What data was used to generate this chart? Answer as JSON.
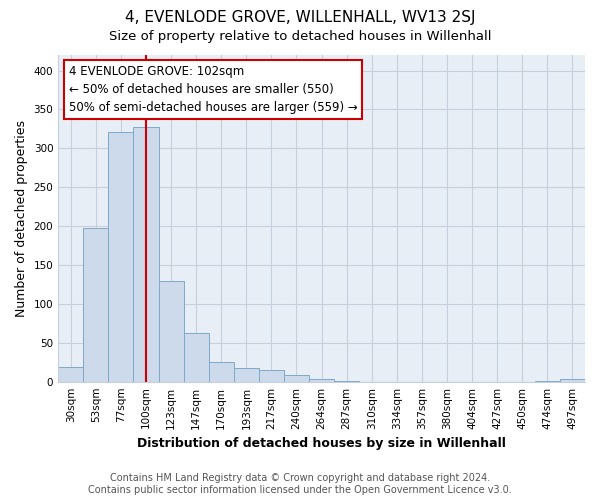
{
  "title": "4, EVENLODE GROVE, WILLENHALL, WV13 2SJ",
  "subtitle": "Size of property relative to detached houses in Willenhall",
  "xlabel": "Distribution of detached houses by size in Willenhall",
  "ylabel": "Number of detached properties",
  "bar_labels": [
    "30sqm",
    "53sqm",
    "77sqm",
    "100sqm",
    "123sqm",
    "147sqm",
    "170sqm",
    "193sqm",
    "217sqm",
    "240sqm",
    "264sqm",
    "287sqm",
    "310sqm",
    "334sqm",
    "357sqm",
    "380sqm",
    "404sqm",
    "427sqm",
    "450sqm",
    "474sqm",
    "497sqm"
  ],
  "bar_values": [
    19,
    198,
    321,
    328,
    130,
    62,
    25,
    17,
    15,
    8,
    3,
    1,
    0,
    0,
    0,
    0,
    0,
    0,
    0,
    1,
    3
  ],
  "bar_color": "#cddaeb",
  "bar_edge_color": "#7fa8c8",
  "vline_color": "#cc0000",
  "annotation_text": "4 EVENLODE GROVE: 102sqm\n← 50% of detached houses are smaller (550)\n50% of semi-detached houses are larger (559) →",
  "annotation_box_color": "#ffffff",
  "annotation_box_edge": "#cc0000",
  "ylim": [
    0,
    420
  ],
  "yticks": [
    0,
    50,
    100,
    150,
    200,
    250,
    300,
    350,
    400
  ],
  "footer_line1": "Contains HM Land Registry data © Crown copyright and database right 2024.",
  "footer_line2": "Contains public sector information licensed under the Open Government Licence v3.0.",
  "bg_color": "#ffffff",
  "plot_bg_color": "#e8eef5",
  "grid_color": "#c5d0dc",
  "title_fontsize": 11,
  "subtitle_fontsize": 9.5,
  "axis_label_fontsize": 9,
  "tick_fontsize": 7.5,
  "annotation_fontsize": 8.5,
  "footer_fontsize": 7
}
